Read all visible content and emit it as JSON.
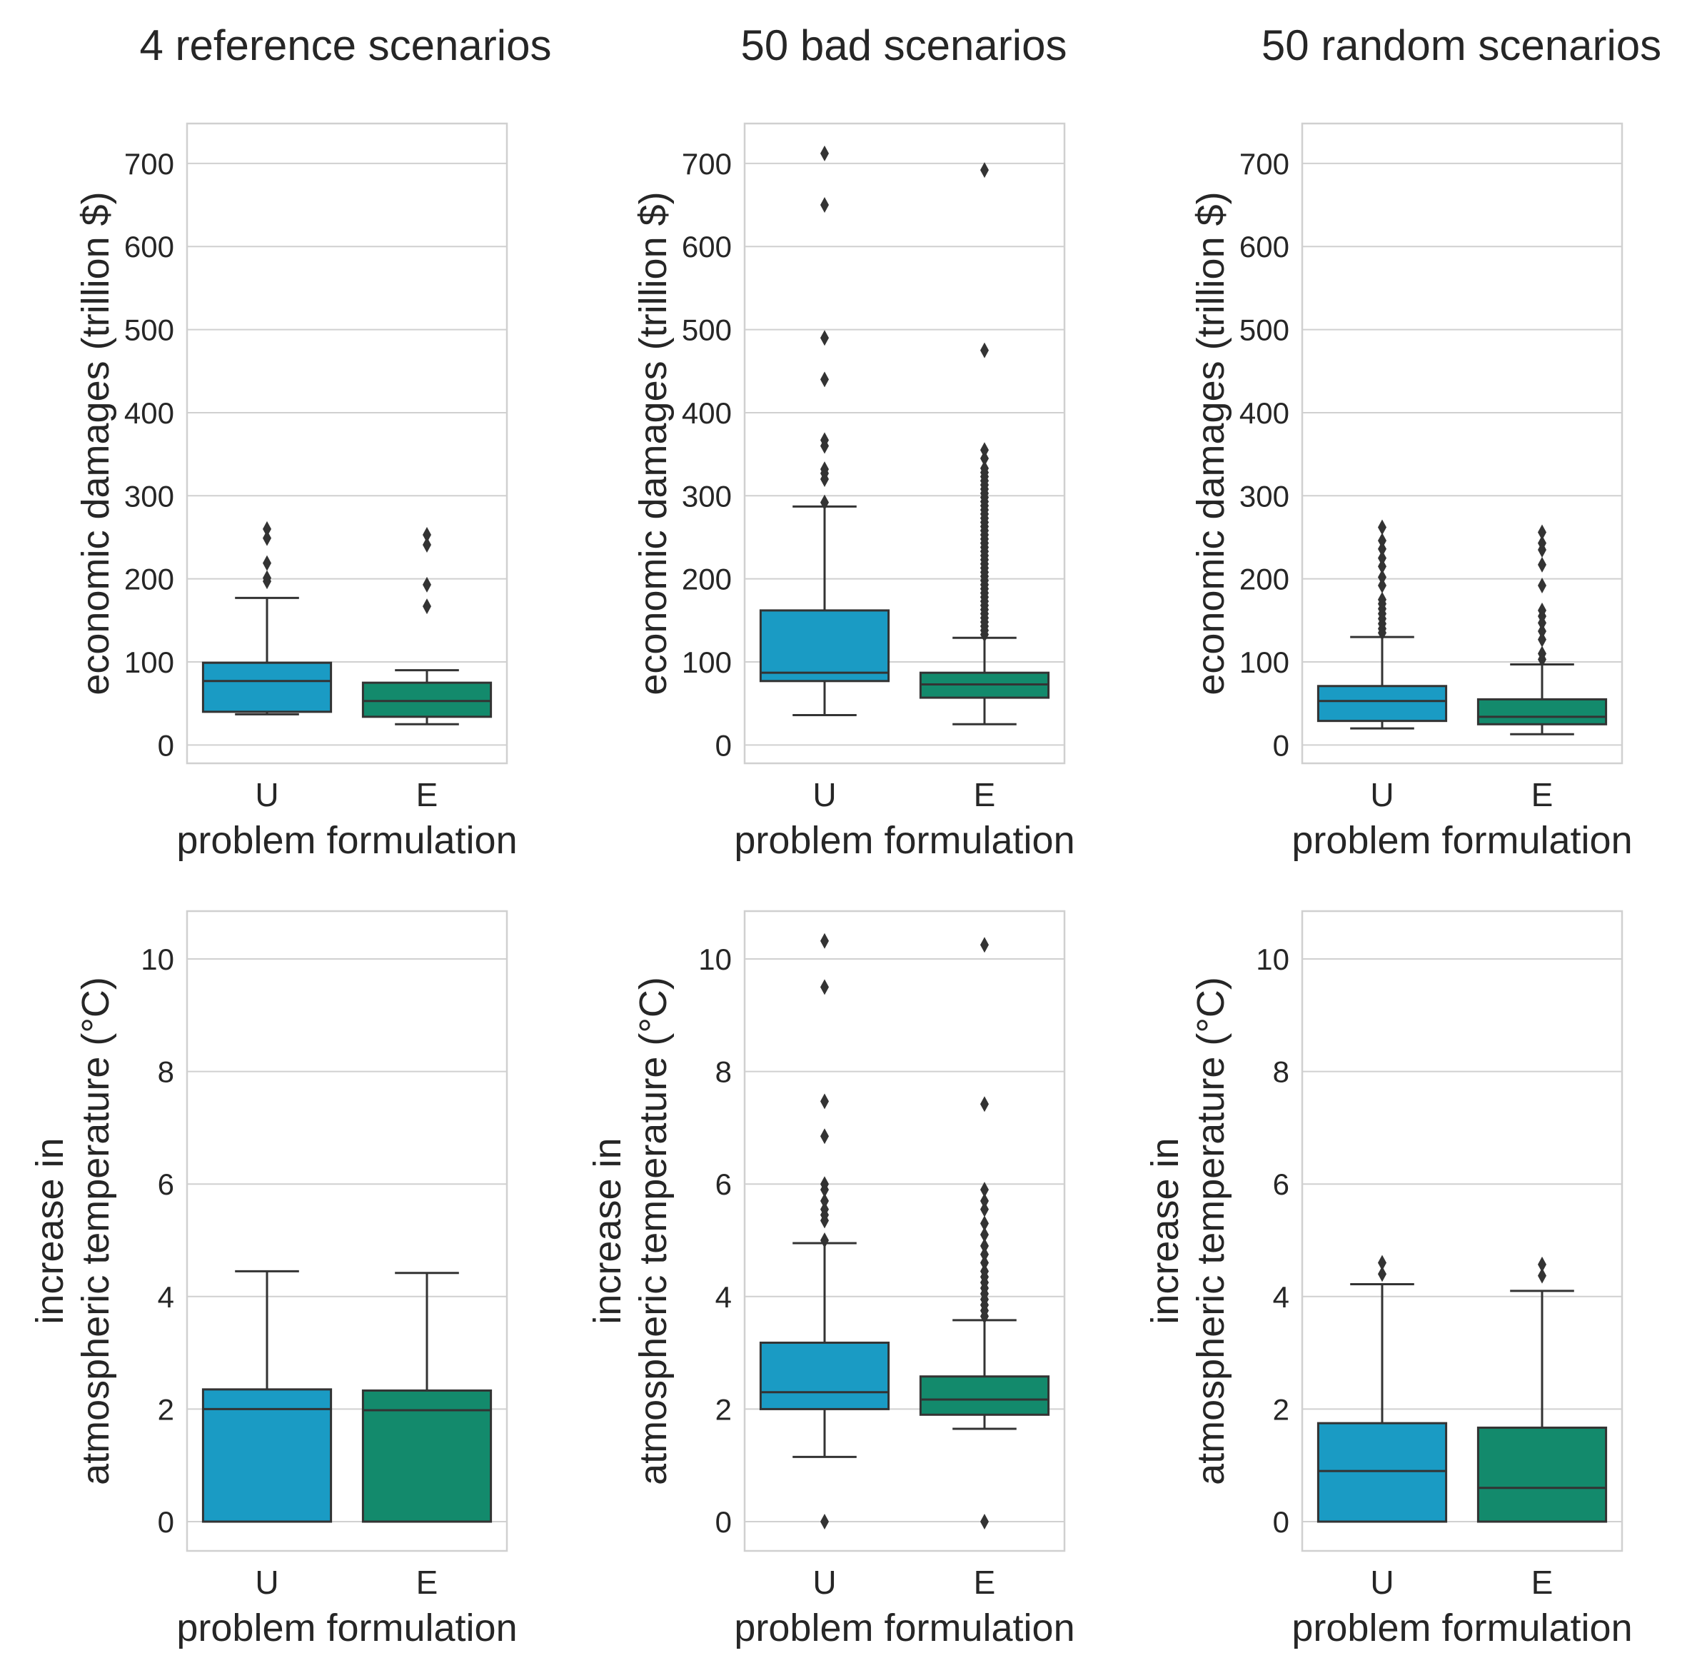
{
  "column_titles": [
    "4 reference scenarios",
    "50 bad scenarios",
    "50 random scenarios"
  ],
  "colors": {
    "U": "#1A9BC4",
    "E": "#138A6C",
    "edge": "#333333",
    "grid": "#D0D0D0",
    "text": "#262626"
  },
  "chart_data": [
    {
      "type": "box",
      "row": 0,
      "col": 0,
      "title": "4 reference scenarios",
      "xlabel": "problem formulation",
      "ylabel": "economic damages (trillion $)",
      "categories": [
        "U",
        "E"
      ],
      "ylim": [
        -22,
        748
      ],
      "yticks": [
        0,
        100,
        200,
        300,
        400,
        500,
        600,
        700
      ],
      "grid": true,
      "boxes": [
        {
          "name": "U",
          "q1": 40,
          "median": 77,
          "q3": 99,
          "whisker_low": 37,
          "whisker_high": 177,
          "outliers": [
            197,
            201,
            219,
            249,
            260
          ]
        },
        {
          "name": "E",
          "q1": 34,
          "median": 53,
          "q3": 75,
          "whisker_low": 25,
          "whisker_high": 90,
          "outliers": [
            167,
            193,
            241,
            253
          ]
        }
      ]
    },
    {
      "type": "box",
      "row": 0,
      "col": 1,
      "title": "50 bad scenarios",
      "xlabel": "problem formulation",
      "ylabel": "economic damages (trillion $)",
      "categories": [
        "U",
        "E"
      ],
      "ylim": [
        -22,
        748
      ],
      "yticks": [
        0,
        100,
        200,
        300,
        400,
        500,
        600,
        700
      ],
      "grid": true,
      "boxes": [
        {
          "name": "U",
          "q1": 77,
          "median": 87,
          "q3": 162,
          "whisker_low": 36,
          "whisker_high": 287,
          "outliers": [
            292,
            320,
            327,
            332,
            360,
            367,
            440,
            490,
            650,
            712
          ]
        },
        {
          "name": "E",
          "q1": 57,
          "median": 73,
          "q3": 87,
          "whisker_low": 25,
          "whisker_high": 129,
          "outliers": [
            133,
            138,
            143,
            148,
            153,
            158,
            163,
            168,
            173,
            178,
            183,
            188,
            193,
            198,
            203,
            208,
            213,
            218,
            223,
            228,
            233,
            238,
            243,
            248,
            253,
            258,
            263,
            268,
            273,
            278,
            283,
            288,
            293,
            298,
            303,
            308,
            313,
            318,
            323,
            328,
            333,
            345,
            355,
            475,
            692
          ]
        }
      ]
    },
    {
      "type": "box",
      "row": 0,
      "col": 2,
      "title": "50 random scenarios",
      "xlabel": "problem formulation",
      "ylabel": "economic damages (trillion $)",
      "categories": [
        "U",
        "E"
      ],
      "ylim": [
        -22,
        748
      ],
      "yticks": [
        0,
        100,
        200,
        300,
        400,
        500,
        600,
        700
      ],
      "grid": true,
      "boxes": [
        {
          "name": "U",
          "q1": 29,
          "median": 53,
          "q3": 71,
          "whisker_low": 20,
          "whisker_high": 130,
          "outliers": [
            135,
            140,
            146,
            152,
            158,
            164,
            170,
            175,
            192,
            202,
            215,
            225,
            236,
            246,
            262
          ]
        },
        {
          "name": "E",
          "q1": 25,
          "median": 34,
          "q3": 55,
          "whisker_low": 13,
          "whisker_high": 97,
          "outliers": [
            103,
            110,
            127,
            137,
            147,
            155,
            162,
            192,
            217,
            235,
            243,
            256
          ]
        }
      ]
    },
    {
      "type": "box",
      "row": 1,
      "col": 0,
      "title": "",
      "xlabel": "problem formulation",
      "ylabel": "increase in\natmospheric temperature (°C)",
      "categories": [
        "U",
        "E"
      ],
      "ylim": [
        -0.52,
        10.85
      ],
      "yticks": [
        0,
        2,
        4,
        6,
        8,
        10
      ],
      "grid": true,
      "boxes": [
        {
          "name": "U",
          "q1": 0,
          "median": 2.0,
          "q3": 2.35,
          "whisker_low": 0,
          "whisker_high": 4.45,
          "outliers": []
        },
        {
          "name": "E",
          "q1": 0,
          "median": 1.98,
          "q3": 2.33,
          "whisker_low": 0,
          "whisker_high": 4.42,
          "outliers": []
        }
      ]
    },
    {
      "type": "box",
      "row": 1,
      "col": 1,
      "title": "",
      "xlabel": "problem formulation",
      "ylabel": "increase in\natmospheric temperature (°C)",
      "categories": [
        "U",
        "E"
      ],
      "ylim": [
        -0.52,
        10.85
      ],
      "yticks": [
        0,
        2,
        4,
        6,
        8,
        10
      ],
      "grid": true,
      "boxes": [
        {
          "name": "U",
          "q1": 2.0,
          "median": 2.3,
          "q3": 3.18,
          "whisker_low": 1.15,
          "whisker_high": 4.95,
          "outliers": [
            0.0,
            5.0,
            5.35,
            5.45,
            5.55,
            5.7,
            5.9,
            6.0,
            6.85,
            7.47,
            9.5,
            10.32
          ]
        },
        {
          "name": "E",
          "q1": 1.9,
          "median": 2.17,
          "q3": 2.58,
          "whisker_low": 1.65,
          "whisker_high": 3.58,
          "outliers": [
            0.0,
            3.65,
            3.75,
            3.85,
            3.95,
            4.05,
            4.15,
            4.25,
            4.35,
            4.45,
            4.6,
            4.75,
            4.9,
            5.1,
            5.3,
            5.55,
            5.7,
            5.9,
            7.42,
            10.25
          ]
        }
      ]
    },
    {
      "type": "box",
      "row": 1,
      "col": 2,
      "title": "",
      "xlabel": "problem formulation",
      "ylabel": "increase in\natmospheric temperature (°C)",
      "categories": [
        "U",
        "E"
      ],
      "ylim": [
        -0.52,
        10.85
      ],
      "yticks": [
        0,
        2,
        4,
        6,
        8,
        10
      ],
      "grid": true,
      "boxes": [
        {
          "name": "U",
          "q1": 0,
          "median": 0.9,
          "q3": 1.75,
          "whisker_low": 0,
          "whisker_high": 4.22,
          "outliers": [
            4.4,
            4.6
          ]
        },
        {
          "name": "E",
          "q1": 0,
          "median": 0.6,
          "q3": 1.67,
          "whisker_low": 0,
          "whisker_high": 4.1,
          "outliers": [
            4.37,
            4.57
          ]
        }
      ]
    }
  ]
}
